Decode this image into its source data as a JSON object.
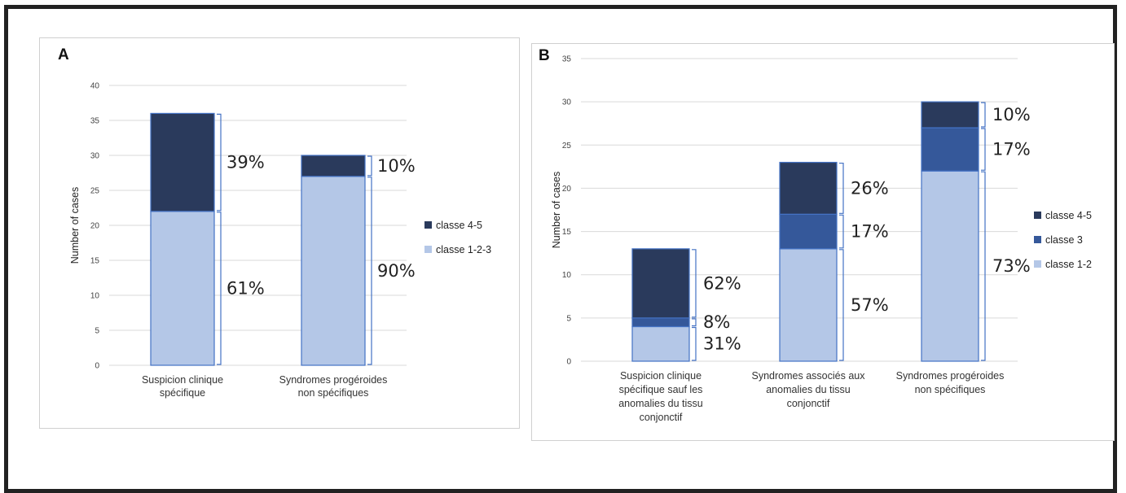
{
  "colors": {
    "dark": "#2a3a5c",
    "mid": "#35589a",
    "light": "#b4c7e7",
    "edge": "#4472c4",
    "grid": "#d9d9d9"
  },
  "chart_data": [
    {
      "id": "A",
      "panel_label": "A",
      "type": "bar",
      "stacked": true,
      "ylabel": "Number of cases",
      "ylim": [
        0,
        40
      ],
      "yticks": [
        0,
        5,
        10,
        15,
        20,
        25,
        30,
        35,
        40
      ],
      "grid": true,
      "legend_position": "right",
      "categories": [
        [
          "Suspicion clinique",
          "spécifique"
        ],
        [
          "Syndromes progéroides",
          "non spécifiques"
        ]
      ],
      "series": [
        {
          "name": "classe 1-2-3",
          "color": "#b4c7e7",
          "values": [
            22,
            27
          ],
          "labels": [
            "61%",
            "90%"
          ]
        },
        {
          "name": "classe 4-5",
          "color": "#2a3a5c",
          "values": [
            14,
            3
          ],
          "labels": [
            "39%",
            "10%"
          ]
        }
      ],
      "legend_order": [
        1,
        0
      ]
    },
    {
      "id": "B",
      "panel_label": "B",
      "type": "bar",
      "stacked": true,
      "ylabel": "Number of cases",
      "ylim": [
        0,
        35
      ],
      "yticks": [
        0,
        5,
        10,
        15,
        20,
        25,
        30,
        35
      ],
      "grid": true,
      "legend_position": "right",
      "categories": [
        [
          "Suspicion clinique",
          "spécifique sauf les",
          "anomalies du tissu",
          "conjonctif"
        ],
        [
          "Syndromes associés aux",
          "anomalies du tissu",
          "conjonctif"
        ],
        [
          "Syndromes progéroides",
          "non spécifiques"
        ]
      ],
      "series": [
        {
          "name": "classe 1-2",
          "color": "#b4c7e7",
          "values": [
            4,
            13,
            22
          ],
          "labels": [
            "31%",
            "57%",
            "73%"
          ]
        },
        {
          "name": "classe 3",
          "color": "#35589a",
          "values": [
            1,
            4,
            5
          ],
          "labels": [
            "8%",
            "17%",
            "17%"
          ]
        },
        {
          "name": "classe 4-5",
          "color": "#2a3a5c",
          "values": [
            8,
            6,
            3
          ],
          "labels": [
            "62%",
            "26%",
            "10%"
          ]
        }
      ],
      "legend_order": [
        2,
        1,
        0
      ]
    }
  ]
}
